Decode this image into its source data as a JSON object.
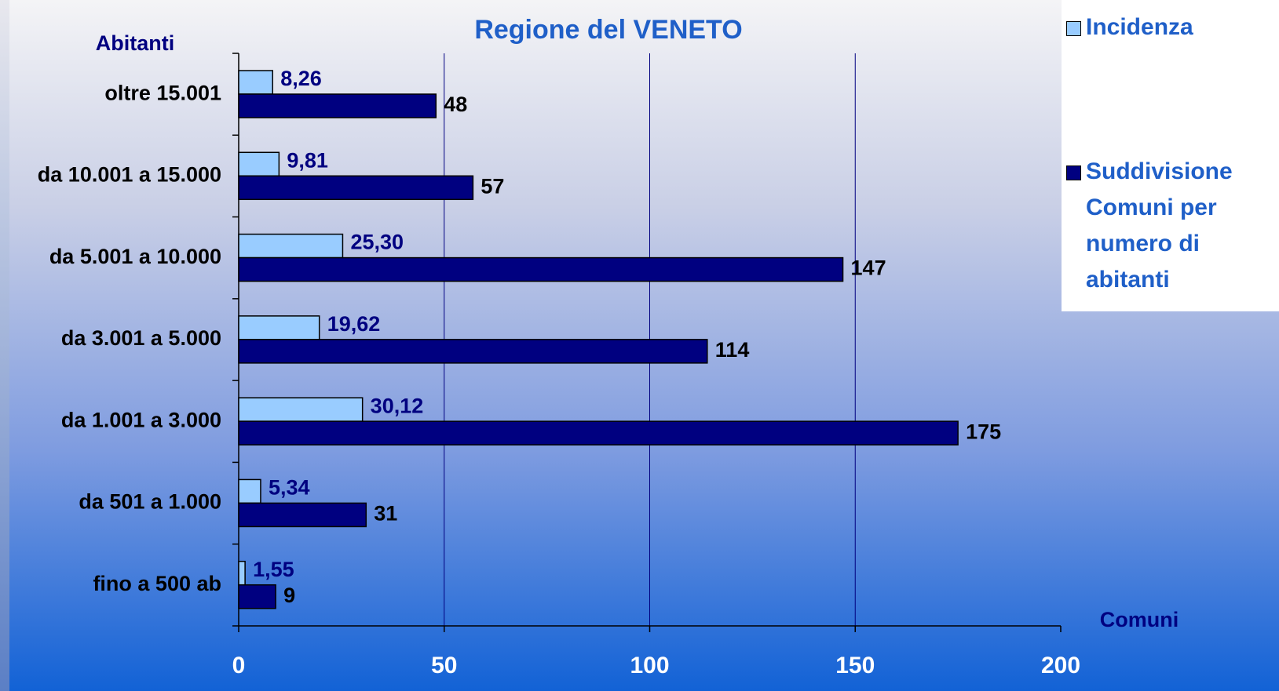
{
  "chart_data": {
    "type": "hbar",
    "title": "Regione del VENETO",
    "y_label": "Abitanti",
    "x_label": "Comuni",
    "categories": [
      "oltre 15.001",
      "da 10.001 a 15.000",
      "da 5.001 a 10.000",
      "da 3.001 a 5.000",
      "da 1.001 a 3.000",
      "da 501 a 1.000",
      "fino a 500 ab"
    ],
    "series": [
      {
        "name": "Incidenza",
        "color": "#99ccff",
        "values": [
          8.26,
          9.81,
          25.3,
          19.62,
          30.12,
          5.34,
          1.55
        ],
        "value_labels": [
          "8,26",
          "9,81",
          "25,30",
          "19,62",
          "30,12",
          "5,34",
          "1,55"
        ]
      },
      {
        "name": "Suddivisione Comuni per numero di abitanti",
        "color": "#000080",
        "values": [
          48,
          57,
          147,
          114,
          175,
          31,
          9
        ]
      }
    ],
    "xlim": [
      0,
      200
    ],
    "xticks": [
      0,
      50,
      100,
      150,
      200
    ],
    "grid": true,
    "legend": "top-right"
  }
}
